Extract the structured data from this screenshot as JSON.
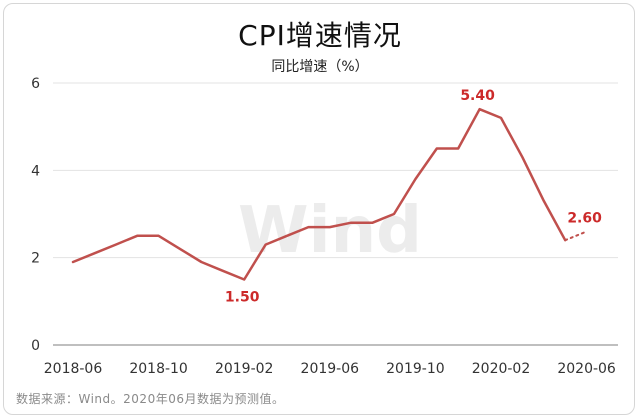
{
  "colors": {
    "line": "#c0504d",
    "label": "#cc2a2a",
    "axis": "#999999",
    "grid": "#e3e3e3",
    "watermark": "#ececec"
  },
  "footer": "数据来源：Wind。2020年06月数据为预测值。",
  "watermark": "Wind",
  "chart_data": {
    "type": "line",
    "title": "CPI增速情况",
    "subtitle": "同比增速（%）",
    "ylim": [
      0,
      6
    ],
    "y_ticks": [
      0,
      2,
      4,
      6
    ],
    "grid": "horizontal",
    "x_tick_labels": [
      "2018-06",
      "2018-10",
      "2019-02",
      "2019-06",
      "2019-10",
      "2020-02",
      "2020-06"
    ],
    "categories": [
      "2018-06",
      "2018-07",
      "2018-08",
      "2018-09",
      "2018-10",
      "2018-11",
      "2018-12",
      "2019-01",
      "2019-02",
      "2019-03",
      "2019-04",
      "2019-05",
      "2019-06",
      "2019-07",
      "2019-08",
      "2019-09",
      "2019-10",
      "2019-11",
      "2019-12",
      "2020-01",
      "2020-02",
      "2020-03",
      "2020-04",
      "2020-05",
      "2020-06"
    ],
    "series": [
      {
        "values": [
          1.9,
          2.1,
          2.3,
          2.5,
          2.5,
          2.2,
          1.9,
          1.7,
          1.5,
          2.3,
          2.5,
          2.7,
          2.7,
          2.8,
          2.8,
          3.0,
          3.8,
          4.5,
          4.5,
          5.4,
          5.2,
          4.3,
          3.3,
          2.4,
          null
        ],
        "style": "solid"
      },
      {
        "values": [
          null,
          null,
          null,
          null,
          null,
          null,
          null,
          null,
          null,
          null,
          null,
          null,
          null,
          null,
          null,
          null,
          null,
          null,
          null,
          null,
          null,
          null,
          null,
          2.4,
          2.6
        ],
        "style": "dotted",
        "note": "forecast"
      }
    ],
    "data_labels": [
      {
        "category": "2019-02",
        "value": 1.5,
        "text": "1.50",
        "position": "below"
      },
      {
        "category": "2020-01",
        "value": 5.4,
        "text": "5.40",
        "position": "above"
      },
      {
        "category": "2020-06",
        "value": 2.6,
        "text": "2.60",
        "position": "above"
      }
    ]
  }
}
